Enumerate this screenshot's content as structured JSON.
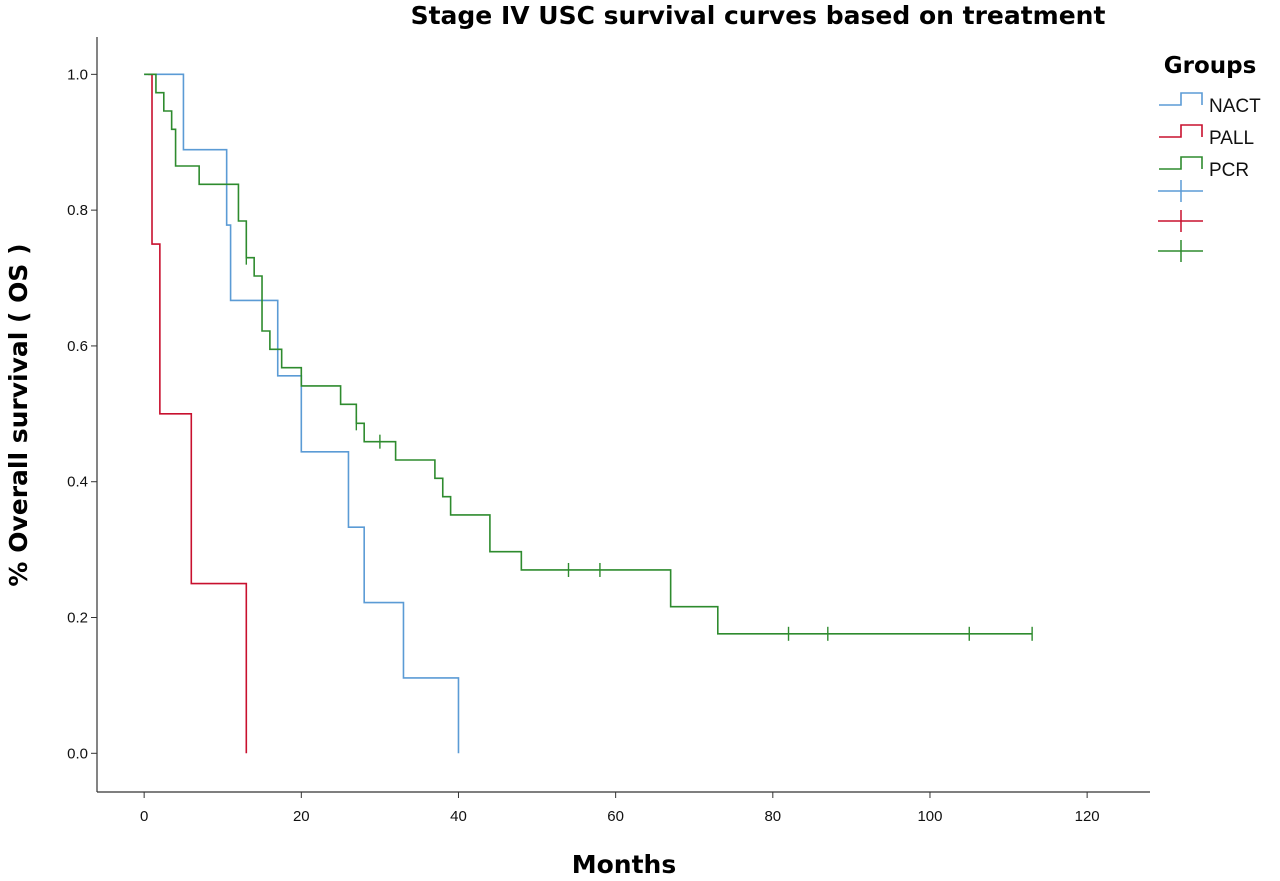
{
  "chart_data": {
    "type": "line",
    "subtype": "kaplan-meier-step",
    "title": "Stage IV USC survival curves based on treatment",
    "xlabel": "Months",
    "ylabel": "% Overall survival ( OS )",
    "xlim": [
      -6,
      128
    ],
    "ylim": [
      -0.057,
      1.055
    ],
    "xticks": [
      0,
      20,
      40,
      60,
      80,
      100,
      120
    ],
    "yticks": [
      0.0,
      0.2,
      0.4,
      0.6,
      0.8,
      1.0
    ],
    "xtick_labels": [
      "0",
      "20",
      "40",
      "60",
      "80",
      "100",
      "120"
    ],
    "ytick_labels": [
      "0.0",
      "0.2",
      "0.4",
      "0.6",
      "0.8",
      "1.0"
    ],
    "grid": false,
    "legend_title": "Groups",
    "legend_position": "top-right",
    "series": [
      {
        "name": "NACT",
        "color": "#5b9bd5",
        "steps": [
          [
            0,
            1.0
          ],
          [
            5,
            0.889
          ],
          [
            10.5,
            0.778
          ],
          [
            11,
            0.667
          ],
          [
            17,
            0.556
          ],
          [
            20,
            0.444
          ],
          [
            26,
            0.333
          ],
          [
            28,
            0.222
          ],
          [
            33,
            0.111
          ],
          [
            40,
            0.0
          ]
        ],
        "censored": [],
        "end_x": 40
      },
      {
        "name": "PALL",
        "color": "#c8102e",
        "steps": [
          [
            0.5,
            1.0
          ],
          [
            1,
            0.75
          ],
          [
            2,
            0.5
          ],
          [
            6,
            0.25
          ],
          [
            13,
            0.0
          ]
        ],
        "censored": [],
        "end_x": 13
      },
      {
        "name": "PCR",
        "color": "#2e8b2e",
        "steps": [
          [
            0,
            1.0
          ],
          [
            1.5,
            0.973
          ],
          [
            2.5,
            0.946
          ],
          [
            3.5,
            0.919
          ],
          [
            4,
            0.865
          ],
          [
            7,
            0.838
          ],
          [
            12,
            0.784
          ],
          [
            13,
            0.73
          ],
          [
            14,
            0.703
          ],
          [
            15,
            0.622
          ],
          [
            16,
            0.595
          ],
          [
            17.5,
            0.568
          ],
          [
            20,
            0.541
          ],
          [
            25,
            0.514
          ],
          [
            27,
            0.486
          ],
          [
            28,
            0.459
          ],
          [
            32,
            0.432
          ],
          [
            37,
            0.405
          ],
          [
            38,
            0.378
          ],
          [
            39,
            0.351
          ],
          [
            44,
            0.297
          ],
          [
            48,
            0.27
          ],
          [
            67,
            0.216
          ],
          [
            73,
            0.176
          ]
        ],
        "censored": [
          [
            13,
            0.73
          ],
          [
            27,
            0.486
          ],
          [
            30,
            0.459
          ],
          [
            54,
            0.27
          ],
          [
            58,
            0.27
          ],
          [
            82,
            0.176
          ],
          [
            87,
            0.176
          ],
          [
            105,
            0.176
          ],
          [
            113,
            0.176
          ]
        ],
        "end_x": 113
      }
    ]
  }
}
